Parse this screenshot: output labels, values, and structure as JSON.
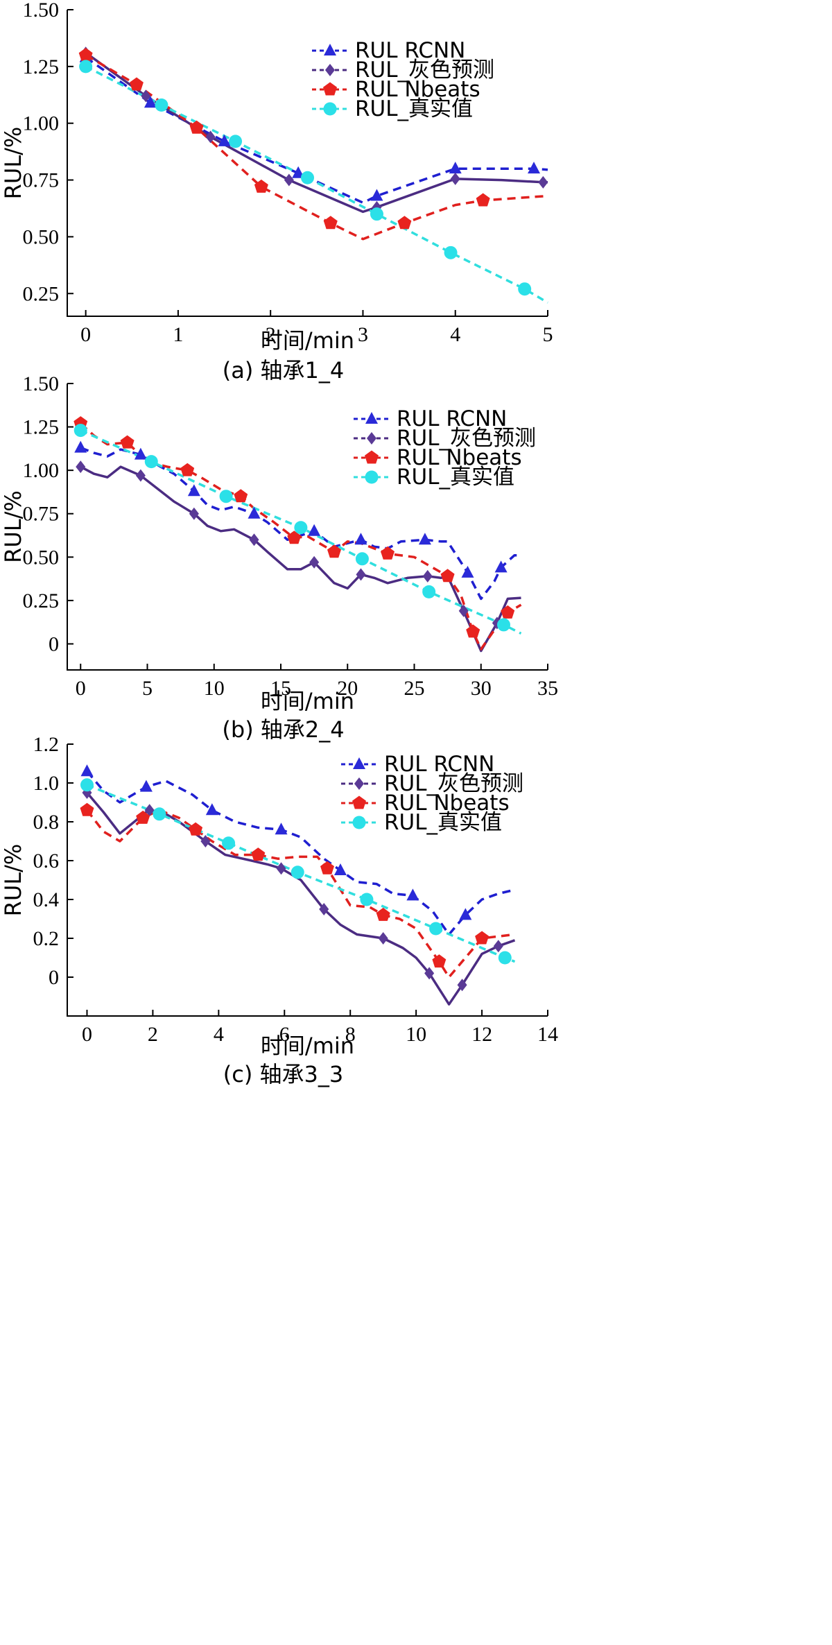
{
  "chart_data": [
    {
      "type": "line",
      "caption": "(a) 轴承1_4",
      "xlabel": "时间/min",
      "ylabel": "RUL/%",
      "xlim": [
        -0.2,
        5.0
      ],
      "ylim": [
        0.15,
        1.5
      ],
      "xticks": [
        0,
        1,
        2,
        3,
        4,
        5
      ],
      "yticks": [
        0.25,
        0.5,
        0.75,
        1.0,
        1.25,
        1.5
      ],
      "ytick_labels": [
        "0.25",
        "0.50",
        "0.75",
        "1.00",
        "1.25",
        "1.50"
      ],
      "legend_position": "top-right",
      "series": [
        {
          "name": "RUL RCNN",
          "color": "#1f1fd0",
          "dash": "12,8",
          "marker": "triangle",
          "marker_color": "#2a2ad8",
          "x": [
            0,
            0.7,
            1.5,
            2.3,
            3.0,
            3.15,
            4.0,
            4.4,
            4.85,
            5.0
          ],
          "y": [
            1.29,
            1.09,
            0.92,
            0.78,
            0.65,
            0.68,
            0.8,
            0.8,
            0.8,
            0.795
          ],
          "marker_x": [
            0,
            0.7,
            1.5,
            2.3,
            3.15,
            4.0,
            4.85
          ],
          "marker_y": [
            1.29,
            1.09,
            0.92,
            0.78,
            0.68,
            0.8,
            0.8
          ]
        },
        {
          "name": "RUL_灰色预测",
          "color": "#4b2c82",
          "dash": "",
          "marker": "diamond",
          "marker_color": "#5a3a96",
          "x": [
            0,
            0.65,
            1.35,
            2.2,
            3.0,
            3.15,
            4.0,
            4.5,
            4.95,
            5.0
          ],
          "y": [
            1.31,
            1.12,
            0.94,
            0.75,
            0.61,
            0.63,
            0.755,
            0.75,
            0.74,
            0.74
          ],
          "marker_x": [
            0,
            0.65,
            1.35,
            2.2,
            3.15,
            4.0,
            4.95
          ],
          "marker_y": [
            1.31,
            1.12,
            0.94,
            0.75,
            0.63,
            0.755,
            0.74
          ],
          "legend_dashed": true
        },
        {
          "name": "RUL Nbeats",
          "color": "#e0201e",
          "dash": "12,8",
          "marker": "pentagon",
          "marker_color": "#e8231f",
          "x": [
            0,
            0.55,
            1.2,
            1.9,
            2.65,
            3.0,
            3.45,
            4.0,
            4.3,
            5.0
          ],
          "y": [
            1.3,
            1.17,
            0.98,
            0.72,
            0.56,
            0.49,
            0.56,
            0.64,
            0.66,
            0.68
          ],
          "marker_x": [
            0,
            0.55,
            1.2,
            1.9,
            2.65,
            3.45,
            4.3
          ],
          "marker_y": [
            1.3,
            1.17,
            0.98,
            0.72,
            0.56,
            0.56,
            0.66
          ]
        },
        {
          "name": "RUL_真实值",
          "color": "#30dede",
          "dash": "10,7",
          "marker": "circle",
          "marker_color": "#2be0e8",
          "x": [
            0,
            0.82,
            1.62,
            2.4,
            3.15,
            3.95,
            4.75,
            5.0
          ],
          "y": [
            1.25,
            1.08,
            0.92,
            0.76,
            0.6,
            0.43,
            0.27,
            0.21
          ],
          "marker_x": [
            0,
            0.82,
            1.62,
            2.4,
            3.15,
            3.95,
            4.75
          ],
          "marker_y": [
            1.25,
            1.08,
            0.92,
            0.76,
            0.6,
            0.43,
            0.27
          ]
        }
      ]
    },
    {
      "type": "line",
      "caption": "(b) 轴承2_4",
      "xlabel": "时间/min",
      "ylabel": "RUL/%",
      "xlim": [
        -1.0,
        35.0
      ],
      "ylim": [
        -0.15,
        1.5
      ],
      "xticks": [
        0,
        5,
        10,
        15,
        20,
        25,
        30,
        35
      ],
      "yticks": [
        0,
        0.25,
        0.5,
        0.75,
        1.0,
        1.25,
        1.5
      ],
      "ytick_labels": [
        "0",
        "0.25",
        "0.50",
        "0.75",
        "1.00",
        "1.25",
        "1.50"
      ],
      "legend_position": "top-right",
      "series": [
        {
          "name": "RUL RCNN",
          "color": "#1f1fd0",
          "dash": "12,8",
          "marker": "triangle",
          "marker_color": "#2a2ad8",
          "x": [
            0,
            1,
            2,
            3,
            4.5,
            6,
            7,
            8.5,
            9.5,
            10.5,
            11.5,
            13,
            14,
            15.5,
            17.5,
            19,
            21,
            22,
            23,
            24,
            25.8,
            27,
            27.5,
            29,
            30,
            31,
            31.5,
            32.5,
            33
          ],
          "y": [
            1.13,
            1.1,
            1.08,
            1.12,
            1.09,
            1.02,
            0.98,
            0.88,
            0.8,
            0.77,
            0.79,
            0.75,
            0.7,
            0.6,
            0.65,
            0.56,
            0.6,
            0.56,
            0.55,
            0.59,
            0.6,
            0.59,
            0.59,
            0.41,
            0.26,
            0.36,
            0.44,
            0.51,
            0.51
          ],
          "marker_x": [
            0,
            4.5,
            8.5,
            13,
            17.5,
            21,
            25.8,
            29,
            31.5
          ],
          "marker_y": [
            1.13,
            1.09,
            0.88,
            0.75,
            0.65,
            0.6,
            0.6,
            0.41,
            0.44
          ]
        },
        {
          "name": "RUL_灰色预测",
          "color": "#4b2c82",
          "dash": "",
          "marker": "diamond",
          "marker_color": "#5a3a96",
          "x": [
            0,
            1,
            2,
            3,
            4.5,
            6,
            7,
            8.5,
            9.5,
            10.5,
            11.5,
            13,
            14,
            15.5,
            16.5,
            17.5,
            19,
            20,
            21,
            22,
            23,
            24.5,
            26,
            27,
            27.5,
            28.7,
            30,
            31.2,
            32,
            33
          ],
          "y": [
            1.02,
            0.98,
            0.96,
            1.02,
            0.97,
            0.88,
            0.82,
            0.75,
            0.68,
            0.65,
            0.66,
            0.6,
            0.53,
            0.43,
            0.43,
            0.47,
            0.35,
            0.32,
            0.4,
            0.38,
            0.35,
            0.38,
            0.39,
            0.38,
            0.39,
            0.19,
            -0.04,
            0.12,
            0.26,
            0.265
          ],
          "marker_x": [
            0,
            4.5,
            8.5,
            13,
            17.5,
            21,
            26,
            28.7,
            31.2
          ],
          "marker_y": [
            1.02,
            0.97,
            0.75,
            0.6,
            0.47,
            0.4,
            0.39,
            0.19,
            0.12
          ],
          "legend_dashed": true
        },
        {
          "name": "RUL Nbeats",
          "color": "#e0201e",
          "dash": "12,8",
          "marker": "pentagon",
          "marker_color": "#e8231f",
          "x": [
            0,
            1,
            2,
            3.5,
            5,
            6.5,
            8,
            9,
            10.5,
            12,
            13,
            14.5,
            16,
            17,
            19,
            20,
            21,
            23,
            25,
            27.5,
            28.5,
            29.4,
            30,
            31,
            32,
            33
          ],
          "y": [
            1.27,
            1.2,
            1.15,
            1.16,
            1.05,
            1.02,
            1.0,
            0.96,
            0.89,
            0.85,
            0.78,
            0.7,
            0.61,
            0.62,
            0.53,
            0.59,
            0.58,
            0.52,
            0.5,
            0.39,
            0.28,
            0.07,
            -0.03,
            0.08,
            0.18,
            0.225
          ],
          "marker_x": [
            0,
            3.5,
            8,
            12,
            16,
            19,
            23,
            27.5,
            29.4,
            32
          ],
          "marker_y": [
            1.27,
            1.16,
            1.0,
            0.85,
            0.61,
            0.53,
            0.52,
            0.39,
            0.07,
            0.18
          ],
          "pentagon_hidden_line": true
        },
        {
          "name": "RUL_真实值",
          "color": "#30dede",
          "dash": "10,7",
          "marker": "circle",
          "marker_color": "#2be0e8",
          "x": [
            0,
            5.3,
            10.9,
            16.5,
            21.1,
            26.1,
            31.7,
            33
          ],
          "y": [
            1.23,
            1.05,
            0.85,
            0.67,
            0.49,
            0.3,
            0.11,
            0.06
          ],
          "marker_x": [
            0,
            5.3,
            10.9,
            16.5,
            21.1,
            26.1,
            31.7
          ],
          "marker_y": [
            1.23,
            1.05,
            0.85,
            0.67,
            0.49,
            0.3,
            0.11
          ]
        }
      ]
    },
    {
      "type": "line",
      "caption": "(c) 轴承3_3",
      "xlabel": "时间/min",
      "ylabel": "RUL/%",
      "xlim": [
        -0.6,
        14.0
      ],
      "ylim": [
        -0.2,
        1.2
      ],
      "xticks": [
        0,
        2,
        4,
        6,
        8,
        10,
        12,
        14
      ],
      "yticks": [
        0,
        0.2,
        0.4,
        0.6,
        0.8,
        1.0,
        1.2
      ],
      "ytick_labels": [
        "0",
        "0.2",
        "0.4",
        "0.6",
        "0.8",
        "1.0",
        "1.2"
      ],
      "legend_position": "top-right",
      "series": [
        {
          "name": "RUL RCNN",
          "color": "#1f1fd0",
          "dash": "12,8",
          "marker": "triangle",
          "marker_color": "#2a2ad8",
          "x": [
            0,
            0.5,
            1,
            1.8,
            2.4,
            3.2,
            3.8,
            4.5,
            5.2,
            5.9,
            6.5,
            7.2,
            7.7,
            8.2,
            8.8,
            9.3,
            9.9,
            10.5,
            11.0,
            11.5,
            12.0,
            12.5,
            13
          ],
          "y": [
            1.06,
            0.96,
            0.9,
            0.98,
            1.01,
            0.94,
            0.86,
            0.8,
            0.77,
            0.76,
            0.72,
            0.61,
            0.55,
            0.49,
            0.48,
            0.43,
            0.42,
            0.34,
            0.22,
            0.32,
            0.4,
            0.43,
            0.45
          ],
          "marker_x": [
            0,
            1.8,
            3.8,
            5.9,
            7.7,
            9.9,
            11.5
          ],
          "marker_y": [
            1.06,
            0.98,
            0.86,
            0.76,
            0.55,
            0.42,
            0.32
          ]
        },
        {
          "name": "RUL_灰色预测",
          "color": "#4b2c82",
          "dash": "",
          "marker": "diamond",
          "marker_color": "#5a3a96",
          "x": [
            0,
            0.5,
            1,
            1.8,
            2.2,
            2.8,
            3.6,
            4.2,
            5.0,
            5.5,
            5.9,
            6.5,
            7.2,
            7.7,
            8.2,
            9.0,
            9.6,
            10.0,
            10.4,
            11.0,
            11.4,
            12.0,
            12.5,
            13
          ],
          "y": [
            0.95,
            0.85,
            0.74,
            0.85,
            0.86,
            0.8,
            0.7,
            0.63,
            0.6,
            0.58,
            0.56,
            0.5,
            0.35,
            0.27,
            0.22,
            0.2,
            0.15,
            0.1,
            0.02,
            -0.14,
            -0.04,
            0.12,
            0.16,
            0.19
          ],
          "marker_x": [
            0,
            1.9,
            3.6,
            5.9,
            7.2,
            9.0,
            10.4,
            11.4,
            12.5
          ],
          "marker_y": [
            0.95,
            0.86,
            0.7,
            0.56,
            0.35,
            0.2,
            0.02,
            -0.04,
            0.16
          ],
          "legend_dashed": true
        },
        {
          "name": "RUL Nbeats",
          "color": "#e0201e",
          "dash": "12,8",
          "marker": "pentagon",
          "marker_color": "#e8231f",
          "x": [
            0,
            0.5,
            1,
            1.7,
            2.2,
            2.8,
            3.3,
            3.8,
            4.5,
            5.2,
            5.8,
            6.4,
            7.0,
            7.3,
            8.0,
            8.6,
            9.0,
            9.5,
            10.0,
            10.7,
            11.0,
            11.5,
            12.0,
            12.5,
            13
          ],
          "y": [
            0.86,
            0.75,
            0.7,
            0.82,
            0.86,
            0.82,
            0.76,
            0.7,
            0.63,
            0.63,
            0.61,
            0.62,
            0.62,
            0.56,
            0.37,
            0.36,
            0.32,
            0.3,
            0.25,
            0.08,
            0.0,
            0.1,
            0.2,
            0.21,
            0.22
          ],
          "marker_x": [
            0,
            1.7,
            3.3,
            5.2,
            7.3,
            9.0,
            10.7,
            12.0
          ],
          "marker_y": [
            0.86,
            0.82,
            0.76,
            0.63,
            0.56,
            0.32,
            0.08,
            0.2
          ]
        },
        {
          "name": "RUL_真实值",
          "color": "#30dede",
          "dash": "10,7",
          "marker": "circle",
          "marker_color": "#2be0e8",
          "x": [
            0,
            2.2,
            4.3,
            6.4,
            8.5,
            10.6,
            12.7,
            13
          ],
          "y": [
            0.99,
            0.84,
            0.69,
            0.54,
            0.4,
            0.25,
            0.1,
            0.08
          ],
          "marker_x": [
            0,
            2.2,
            4.3,
            6.4,
            8.5,
            10.6,
            12.7
          ],
          "marker_y": [
            0.99,
            0.84,
            0.69,
            0.54,
            0.4,
            0.25,
            0.1
          ]
        }
      ]
    }
  ]
}
